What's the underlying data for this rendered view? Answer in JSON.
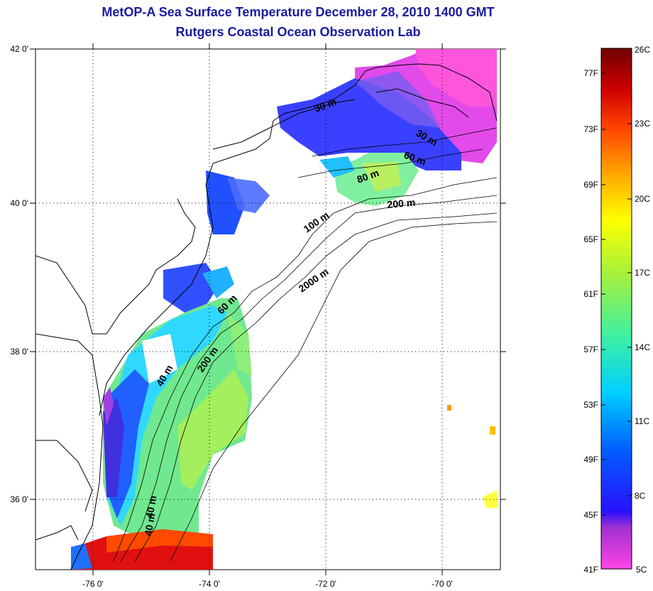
{
  "header": {
    "title": "MetOP-A Sea Surface Temperature December 28, 2010 1400 GMT",
    "subtitle": "Rutgers Coastal Ocean Observation Lab"
  },
  "map": {
    "lon_ticks": [
      "-76 0'",
      "-74 0'",
      "-72 0'",
      "-70 0'"
    ],
    "lat_ticks": [
      "42 0'",
      "40 0'",
      "38 0'",
      "36 0'"
    ],
    "isobath_labels": [
      "30 m",
      "30 m",
      "60 m",
      "80 m",
      "200 m",
      "100 m",
      "2000 m",
      "60 m",
      "40 m",
      "200 m",
      "40 m",
      "40 m"
    ]
  },
  "colorbar": {
    "fahrenheit": [
      "77F",
      "73F",
      "69F",
      "65F",
      "61F",
      "57F",
      "53F",
      "49F",
      "45F",
      "41F"
    ],
    "celsius": [
      "26C",
      "23C",
      "20C",
      "17C",
      "14C",
      "11C",
      "8C",
      "5C"
    ],
    "colors": [
      "#7a0000",
      "#d40000",
      "#ff5a00",
      "#ffb000",
      "#ffff00",
      "#a6f040",
      "#2af0b0",
      "#00c8ff",
      "#0058ff",
      "#0000ff",
      "#7a30c0",
      "#ff40e0"
    ]
  }
}
